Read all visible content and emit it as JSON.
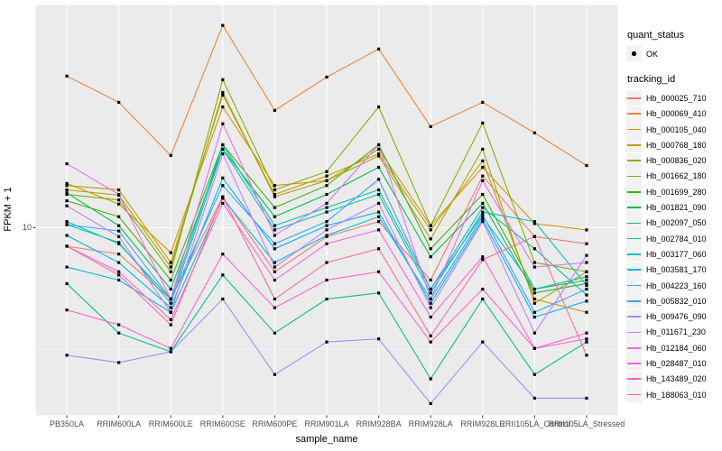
{
  "chart_data": {
    "type": "line",
    "title": "",
    "xlabel": "sample_name",
    "ylabel": "FPKM + 1",
    "y_scale": "log10",
    "y_domain": [
      1.7,
      82
    ],
    "y_ticks": [
      10
    ],
    "y_tick_labels": [
      "10"
    ],
    "y_minor_ticks": [
      3.162,
      31.623
    ],
    "grid": "major-white-on-grey",
    "panel_bg": "#EBEBEB",
    "grid_color": "#FFFFFF",
    "tick_color": "#333333",
    "tick_label_color": "#4D4D4D",
    "point_marker": "small-black-square",
    "legend_position": "right",
    "categories": [
      "PB350LA",
      "RRIM600LA",
      "RRIM600LE",
      "RRIM600SE",
      "RRIM600PE",
      "RRIM901LA",
      "RRIM928BA",
      "RRIM928LA",
      "RRIM928LE",
      "RRII105LA_Control",
      "RRII105LA_Stressed"
    ],
    "series": [
      {
        "name": "Hb_000025_710",
        "color": "#F8766D",
        "values": [
          8.4,
          7.8,
          5.1,
          13.4,
          6.6,
          9.2,
          10.6,
          6.1,
          16.3,
          9.2,
          8.6
        ]
      },
      {
        "name": "Hb_000069_410",
        "color": "#EA8331",
        "values": [
          41.9,
          32.7,
          19.8,
          67.6,
          30.3,
          41.5,
          54.1,
          26.0,
          32.7,
          24.5,
          18.0
        ]
      },
      {
        "name": "Hb_000105_040",
        "color": "#D89000",
        "values": [
          15.2,
          12.5,
          7.9,
          31.3,
          14.9,
          15.6,
          21.0,
          10.2,
          17.7,
          10.4,
          9.8
        ]
      },
      {
        "name": "Hb_000768_180",
        "color": "#C09B00",
        "values": [
          14.9,
          14.3,
          7.2,
          35.0,
          13.7,
          16.3,
          20.1,
          9.8,
          18.8,
          5.1,
          4.5
        ]
      },
      {
        "name": "Hb_000836_020",
        "color": "#A3A500",
        "values": [
          14.3,
          13.6,
          6.9,
          35.9,
          13.4,
          15.6,
          19.7,
          9.0,
          21.0,
          4.9,
          6.6
        ]
      },
      {
        "name": "Hb_001662_180",
        "color": "#7CAE00",
        "values": [
          13.7,
          13.0,
          6.6,
          40.5,
          14.3,
          17.0,
          31.3,
          10.2,
          26.9,
          7.2,
          6.6
        ]
      },
      {
        "name": "Hb_001699_280",
        "color": "#39B600",
        "values": [
          12.9,
          11.1,
          6.1,
          21.9,
          12.1,
          14.9,
          21.9,
          8.2,
          13.7,
          5.6,
          6.1
        ]
      },
      {
        "name": "Hb_001821_090",
        "color": "#00BB4E",
        "values": [
          13.9,
          10.2,
          5.6,
          21.0,
          11.1,
          13.7,
          17.7,
          7.6,
          12.6,
          5.4,
          5.9
        ]
      },
      {
        "name": "Hb_002097_050",
        "color": "#00C087",
        "values": [
          5.9,
          3.7,
          3.1,
          6.4,
          3.7,
          5.1,
          5.4,
          2.4,
          5.1,
          2.5,
          3.4
        ]
      },
      {
        "name": "Hb_002784_010",
        "color": "#00C1A3",
        "values": [
          10.6,
          8.6,
          5.1,
          21.9,
          10.2,
          12.1,
          14.3,
          5.6,
          12.1,
          8.2,
          5.3
        ]
      },
      {
        "name": "Hb_003177_060",
        "color": "#00BFC4",
        "values": [
          10.3,
          8.7,
          4.9,
          21.0,
          9.8,
          11.6,
          13.7,
          5.4,
          11.6,
          10.6,
          5.8
        ]
      },
      {
        "name": "Hb_003581_170",
        "color": "#00BAE0",
        "values": [
          6.9,
          6.1,
          4.5,
          13.2,
          7.2,
          9.3,
          11.1,
          5.1,
          11.1,
          5.6,
          6.3
        ]
      },
      {
        "name": "Hb_004223_160",
        "color": "#00B0F6",
        "values": [
          9.3,
          7.2,
          4.7,
          16.0,
          8.2,
          10.2,
          11.6,
          4.9,
          10.8,
          4.3,
          5.0
        ]
      },
      {
        "name": "Hb_005832_010",
        "color": "#35A2FF",
        "values": [
          10.3,
          9.7,
          5.1,
          14.9,
          8.6,
          10.6,
          15.8,
          5.6,
          11.3,
          4.5,
          5.6
        ]
      },
      {
        "name": "Hb_009476_090",
        "color": "#9590FF",
        "values": [
          3.0,
          2.8,
          3.1,
          5.1,
          2.5,
          3.4,
          3.5,
          1.9,
          3.4,
          2.0,
          2.0
        ]
      },
      {
        "name": "Hb_011671_230",
        "color": "#C77CFF",
        "values": [
          12.3,
          9.2,
          4.5,
          20.1,
          6.9,
          9.8,
          12.6,
          4.7,
          10.6,
          3.7,
          7.7
        ]
      },
      {
        "name": "Hb_012184_060",
        "color": "#E76BF3",
        "values": [
          18.3,
          13.7,
          5.1,
          26.7,
          9.3,
          12.6,
          21.9,
          5.1,
          15.6,
          6.9,
          7.2
        ]
      },
      {
        "name": "Hb_028487_010",
        "color": "#FA62DB",
        "values": [
          8.4,
          6.6,
          4.2,
          12.6,
          6.1,
          8.6,
          9.8,
          4.3,
          7.6,
          3.2,
          3.5
        ]
      },
      {
        "name": "Hb_143489_020",
        "color": "#FF61CC",
        "values": [
          4.6,
          4.0,
          3.2,
          7.8,
          4.7,
          6.1,
          6.6,
          3.4,
          5.6,
          3.2,
          3.7
        ]
      },
      {
        "name": "Hb_188063_010",
        "color": "#FF6A98",
        "values": [
          8.4,
          6.4,
          4.0,
          13.4,
          5.1,
          7.2,
          8.2,
          3.6,
          7.4,
          9.2,
          3.0
        ]
      }
    ]
  },
  "legend": {
    "quant_status_title": "quant_status",
    "quant_status_items": [
      {
        "label": "OK",
        "marker": "black-point"
      }
    ],
    "tracking_title": "tracking_id"
  }
}
